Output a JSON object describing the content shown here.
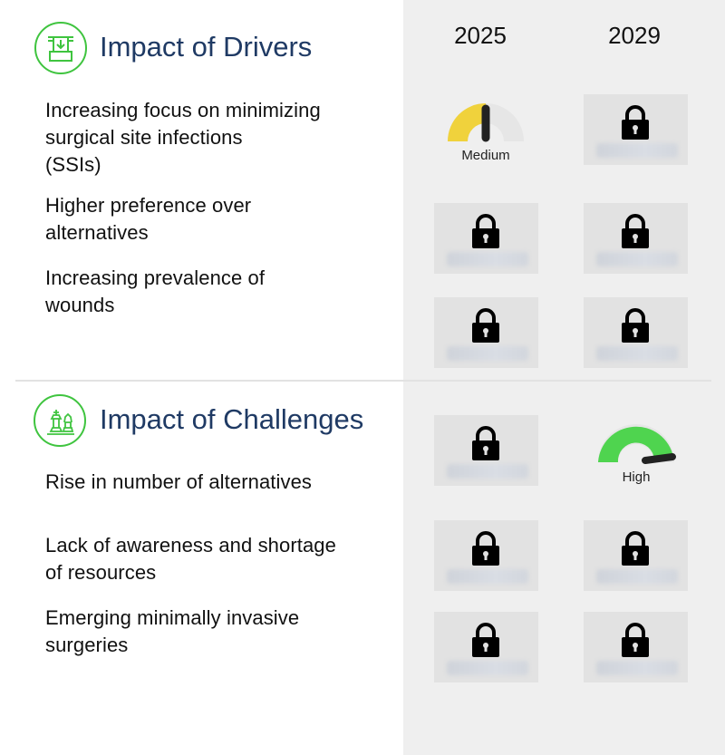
{
  "years": [
    "2025",
    "2029"
  ],
  "drivers": {
    "title": "Impact of Drivers",
    "icon": "drivers-icon",
    "rows": [
      {
        "label": "Increasing focus on minimizing\nsurgical site infections\n(SSIs)",
        "y2025": {
          "type": "gauge",
          "level": "Medium"
        },
        "y2029": {
          "type": "locked"
        }
      },
      {
        "label": "Higher preference over\nalternatives",
        "y2025": {
          "type": "locked"
        },
        "y2029": {
          "type": "locked"
        }
      },
      {
        "label": "Increasing prevalence of\nwounds",
        "y2025": {
          "type": "locked"
        },
        "y2029": {
          "type": "locked"
        }
      }
    ]
  },
  "challenges": {
    "title": "Impact of Challenges",
    "icon": "chess-strategy-icon",
    "rows": [
      {
        "label": "Rise in number of alternatives",
        "y2025": {
          "type": "locked"
        },
        "y2029": {
          "type": "gauge",
          "level": "High"
        }
      },
      {
        "label": "Lack of awareness and shortage\nof resources",
        "y2025": {
          "type": "locked"
        },
        "y2029": {
          "type": "locked"
        }
      },
      {
        "label": "Emerging minimally invasive\nsurgeries",
        "y2025": {
          "type": "locked"
        },
        "y2029": {
          "type": "locked"
        }
      }
    ]
  },
  "gauges": {
    "medium": {
      "label": "Medium",
      "fill_fraction": 0.5,
      "color": "#f0d23c"
    },
    "high": {
      "label": "High",
      "fill_fraction": 0.95,
      "color": "#4fd44f"
    }
  },
  "colors": {
    "title": "#1f3a64",
    "icon_ring": "#3fc43f",
    "panel_bg": "#efefef",
    "locked_cell_bg": "#e2e2e2",
    "gauge_track": "#e6e6e6"
  },
  "locked_icon": "padlock-icon"
}
